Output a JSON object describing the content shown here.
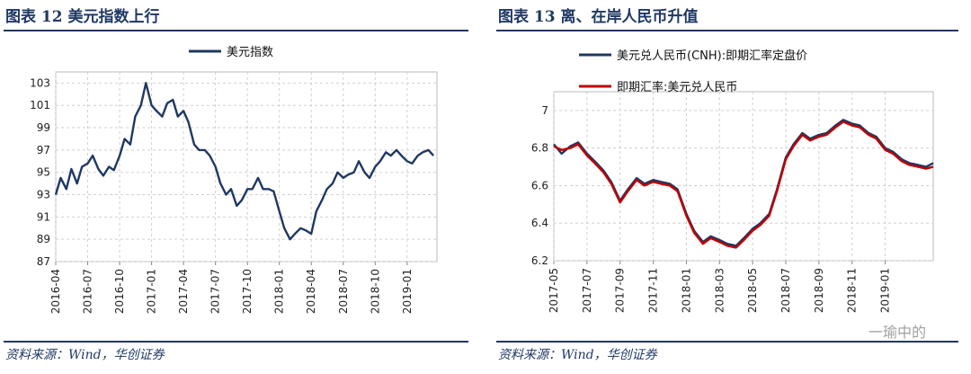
{
  "left": {
    "title": "图表 12    美元指数上行",
    "source": "资料来源：Wind，华创证券",
    "chart_data": {
      "type": "line",
      "title": "",
      "legend": "top-center",
      "series": [
        {
          "name": "美元指数",
          "color": "#1f3864",
          "points": [
            [
              "2016-04",
              93.0
            ],
            [
              "2016-04-15",
              94.5
            ],
            [
              "2016-05",
              93.5
            ],
            [
              "2016-05-15",
              95.3
            ],
            [
              "2016-06",
              94.0
            ],
            [
              "2016-06-15",
              95.5
            ],
            [
              "2016-07",
              95.8
            ],
            [
              "2016-07-15",
              96.5
            ],
            [
              "2016-08",
              95.3
            ],
            [
              "2016-08-15",
              94.7
            ],
            [
              "2016-09",
              95.5
            ],
            [
              "2016-09-15",
              95.2
            ],
            [
              "2016-10",
              96.5
            ],
            [
              "2016-10-15",
              98.0
            ],
            [
              "2016-11",
              97.5
            ],
            [
              "2016-11-15",
              100.0
            ],
            [
              "2016-12",
              101.0
            ],
            [
              "2016-12-15",
              103.0
            ],
            [
              "2017-01",
              101.0
            ],
            [
              "2017-01-15",
              100.5
            ],
            [
              "2017-02",
              100.0
            ],
            [
              "2017-02-15",
              101.2
            ],
            [
              "2017-03",
              101.5
            ],
            [
              "2017-03-15",
              100.0
            ],
            [
              "2017-04",
              100.5
            ],
            [
              "2017-04-15",
              99.5
            ],
            [
              "2017-05",
              97.5
            ],
            [
              "2017-05-15",
              97.0
            ],
            [
              "2017-06",
              97.0
            ],
            [
              "2017-06-15",
              96.5
            ],
            [
              "2017-07",
              95.5
            ],
            [
              "2017-07-15",
              94.0
            ],
            [
              "2017-08",
              93.0
            ],
            [
              "2017-08-15",
              93.5
            ],
            [
              "2017-09",
              92.0
            ],
            [
              "2017-09-15",
              92.5
            ],
            [
              "2017-10",
              93.5
            ],
            [
              "2017-10-15",
              93.5
            ],
            [
              "2017-11",
              94.5
            ],
            [
              "2017-11-15",
              93.5
            ],
            [
              "2017-12",
              93.5
            ],
            [
              "2017-12-15",
              93.3
            ],
            [
              "2018-01",
              91.5
            ],
            [
              "2018-01-15",
              90.0
            ],
            [
              "2018-02",
              89.0
            ],
            [
              "2018-02-15",
              89.5
            ],
            [
              "2018-03",
              90.0
            ],
            [
              "2018-03-15",
              89.8
            ],
            [
              "2018-04",
              89.5
            ],
            [
              "2018-04-15",
              91.5
            ],
            [
              "2018-05",
              92.5
            ],
            [
              "2018-05-15",
              93.5
            ],
            [
              "2018-06",
              94.0
            ],
            [
              "2018-06-15",
              95.0
            ],
            [
              "2018-07",
              94.5
            ],
            [
              "2018-07-15",
              94.8
            ],
            [
              "2018-08",
              95.0
            ],
            [
              "2018-08-15",
              96.0
            ],
            [
              "2018-09",
              95.0
            ],
            [
              "2018-09-15",
              94.5
            ],
            [
              "2018-10",
              95.5
            ],
            [
              "2018-10-15",
              96.0
            ],
            [
              "2018-11",
              96.8
            ],
            [
              "2018-11-15",
              96.5
            ],
            [
              "2018-12",
              97.0
            ],
            [
              "2018-12-15",
              96.5
            ],
            [
              "2019-01",
              96.0
            ],
            [
              "2019-01-15",
              95.8
            ],
            [
              "2019-02",
              96.5
            ],
            [
              "2019-02-15",
              96.8
            ],
            [
              "2019-03",
              97.0
            ],
            [
              "2019-03-15",
              96.5
            ]
          ]
        }
      ],
      "x_ticks": [
        "2016-04",
        "2016-07",
        "2016-10",
        "2017-01",
        "2017-04",
        "2017-07",
        "2017-10",
        "2018-01",
        "2018-04",
        "2018-07",
        "2018-10",
        "2019-01"
      ],
      "y_ticks": [
        87,
        89,
        91,
        93,
        95,
        97,
        99,
        101,
        103
      ],
      "ylim": [
        87,
        104
      ],
      "xlim": [
        "2016-04",
        "2019-03-25"
      ],
      "grid": "dashed"
    }
  },
  "right": {
    "title": "图表 13    离、在岸人民币升值",
    "source": "资料来源：Wind，华创证券",
    "watermark": "一瑜中的",
    "chart_data": {
      "type": "line",
      "title": "",
      "legend": "top-left",
      "series": [
        {
          "name": "美元兑人民币(CNH):即期汇率定盘价",
          "color": "#1f3864",
          "points": [
            [
              "2017-05",
              6.82
            ],
            [
              "2017-05-15",
              6.77
            ],
            [
              "2017-06",
              6.81
            ],
            [
              "2017-06-15",
              6.83
            ],
            [
              "2017-07",
              6.77
            ],
            [
              "2017-07-15",
              6.73
            ],
            [
              "2017-08",
              6.68
            ],
            [
              "2017-08-15",
              6.62
            ],
            [
              "2017-09",
              6.52
            ],
            [
              "2017-09-15",
              6.58
            ],
            [
              "2017-10",
              6.64
            ],
            [
              "2017-10-15",
              6.61
            ],
            [
              "2017-11",
              6.63
            ],
            [
              "2017-11-15",
              6.62
            ],
            [
              "2017-12",
              6.61
            ],
            [
              "2017-12-15",
              6.58
            ],
            [
              "2018-01",
              6.45
            ],
            [
              "2018-01-15",
              6.36
            ],
            [
              "2018-02",
              6.3
            ],
            [
              "2018-02-15",
              6.33
            ],
            [
              "2018-03",
              6.31
            ],
            [
              "2018-03-15",
              6.29
            ],
            [
              "2018-04",
              6.28
            ],
            [
              "2018-04-15",
              6.32
            ],
            [
              "2018-05",
              6.37
            ],
            [
              "2018-05-15",
              6.4
            ],
            [
              "2018-06",
              6.45
            ],
            [
              "2018-06-15",
              6.58
            ],
            [
              "2018-07",
              6.75
            ],
            [
              "2018-07-15",
              6.82
            ],
            [
              "2018-08",
              6.88
            ],
            [
              "2018-08-15",
              6.85
            ],
            [
              "2018-09",
              6.87
            ],
            [
              "2018-09-15",
              6.88
            ],
            [
              "2018-10",
              6.92
            ],
            [
              "2018-10-15",
              6.95
            ],
            [
              "2018-11",
              6.93
            ],
            [
              "2018-11-15",
              6.92
            ],
            [
              "2018-12",
              6.88
            ],
            [
              "2018-12-15",
              6.86
            ],
            [
              "2019-01",
              6.8
            ],
            [
              "2019-01-15",
              6.78
            ],
            [
              "2019-02",
              6.74
            ],
            [
              "2019-02-15",
              6.72
            ],
            [
              "2019-03",
              6.71
            ],
            [
              "2019-03-15",
              6.7
            ],
            [
              "2019-03-28",
              6.72
            ]
          ]
        },
        {
          "name": "即期汇率:美元兑人民币",
          "color": "#c00000",
          "points": [
            [
              "2017-05",
              6.81
            ],
            [
              "2017-05-15",
              6.79
            ],
            [
              "2017-06",
              6.8
            ],
            [
              "2017-06-15",
              6.82
            ],
            [
              "2017-07",
              6.76
            ],
            [
              "2017-07-15",
              6.72
            ],
            [
              "2017-08",
              6.67
            ],
            [
              "2017-08-15",
              6.61
            ],
            [
              "2017-09",
              6.51
            ],
            [
              "2017-09-15",
              6.57
            ],
            [
              "2017-10",
              6.63
            ],
            [
              "2017-10-15",
              6.6
            ],
            [
              "2017-11",
              6.62
            ],
            [
              "2017-11-15",
              6.61
            ],
            [
              "2017-12",
              6.6
            ],
            [
              "2017-12-15",
              6.57
            ],
            [
              "2018-01",
              6.44
            ],
            [
              "2018-01-15",
              6.35
            ],
            [
              "2018-02",
              6.29
            ],
            [
              "2018-02-15",
              6.32
            ],
            [
              "2018-03",
              6.3
            ],
            [
              "2018-03-15",
              6.28
            ],
            [
              "2018-04",
              6.27
            ],
            [
              "2018-04-15",
              6.31
            ],
            [
              "2018-05",
              6.36
            ],
            [
              "2018-05-15",
              6.39
            ],
            [
              "2018-06",
              6.44
            ],
            [
              "2018-06-15",
              6.57
            ],
            [
              "2018-07",
              6.74
            ],
            [
              "2018-07-15",
              6.81
            ],
            [
              "2018-08",
              6.87
            ],
            [
              "2018-08-15",
              6.84
            ],
            [
              "2018-09",
              6.86
            ],
            [
              "2018-09-15",
              6.87
            ],
            [
              "2018-10",
              6.91
            ],
            [
              "2018-10-15",
              6.94
            ],
            [
              "2018-11",
              6.92
            ],
            [
              "2018-11-15",
              6.91
            ],
            [
              "2018-12",
              6.87
            ],
            [
              "2018-12-15",
              6.85
            ],
            [
              "2019-01",
              6.79
            ],
            [
              "2019-01-15",
              6.77
            ],
            [
              "2019-02",
              6.73
            ],
            [
              "2019-02-15",
              6.71
            ],
            [
              "2019-03",
              6.7
            ],
            [
              "2019-03-15",
              6.69
            ],
            [
              "2019-03-28",
              6.7
            ]
          ]
        }
      ],
      "x_ticks": [
        "2017-05",
        "2017-07",
        "2017-09",
        "2017-11",
        "2018-01",
        "2018-03",
        "2018-05",
        "2018-07",
        "2018-09",
        "2018-11",
        "2019-01"
      ],
      "y_ticks": [
        6.2,
        6.4,
        6.6,
        6.8,
        7.0
      ],
      "ylim": [
        6.2,
        7.1
      ],
      "xlim": [
        "2017-05",
        "2019-03-28"
      ],
      "grid": "dashed"
    }
  }
}
